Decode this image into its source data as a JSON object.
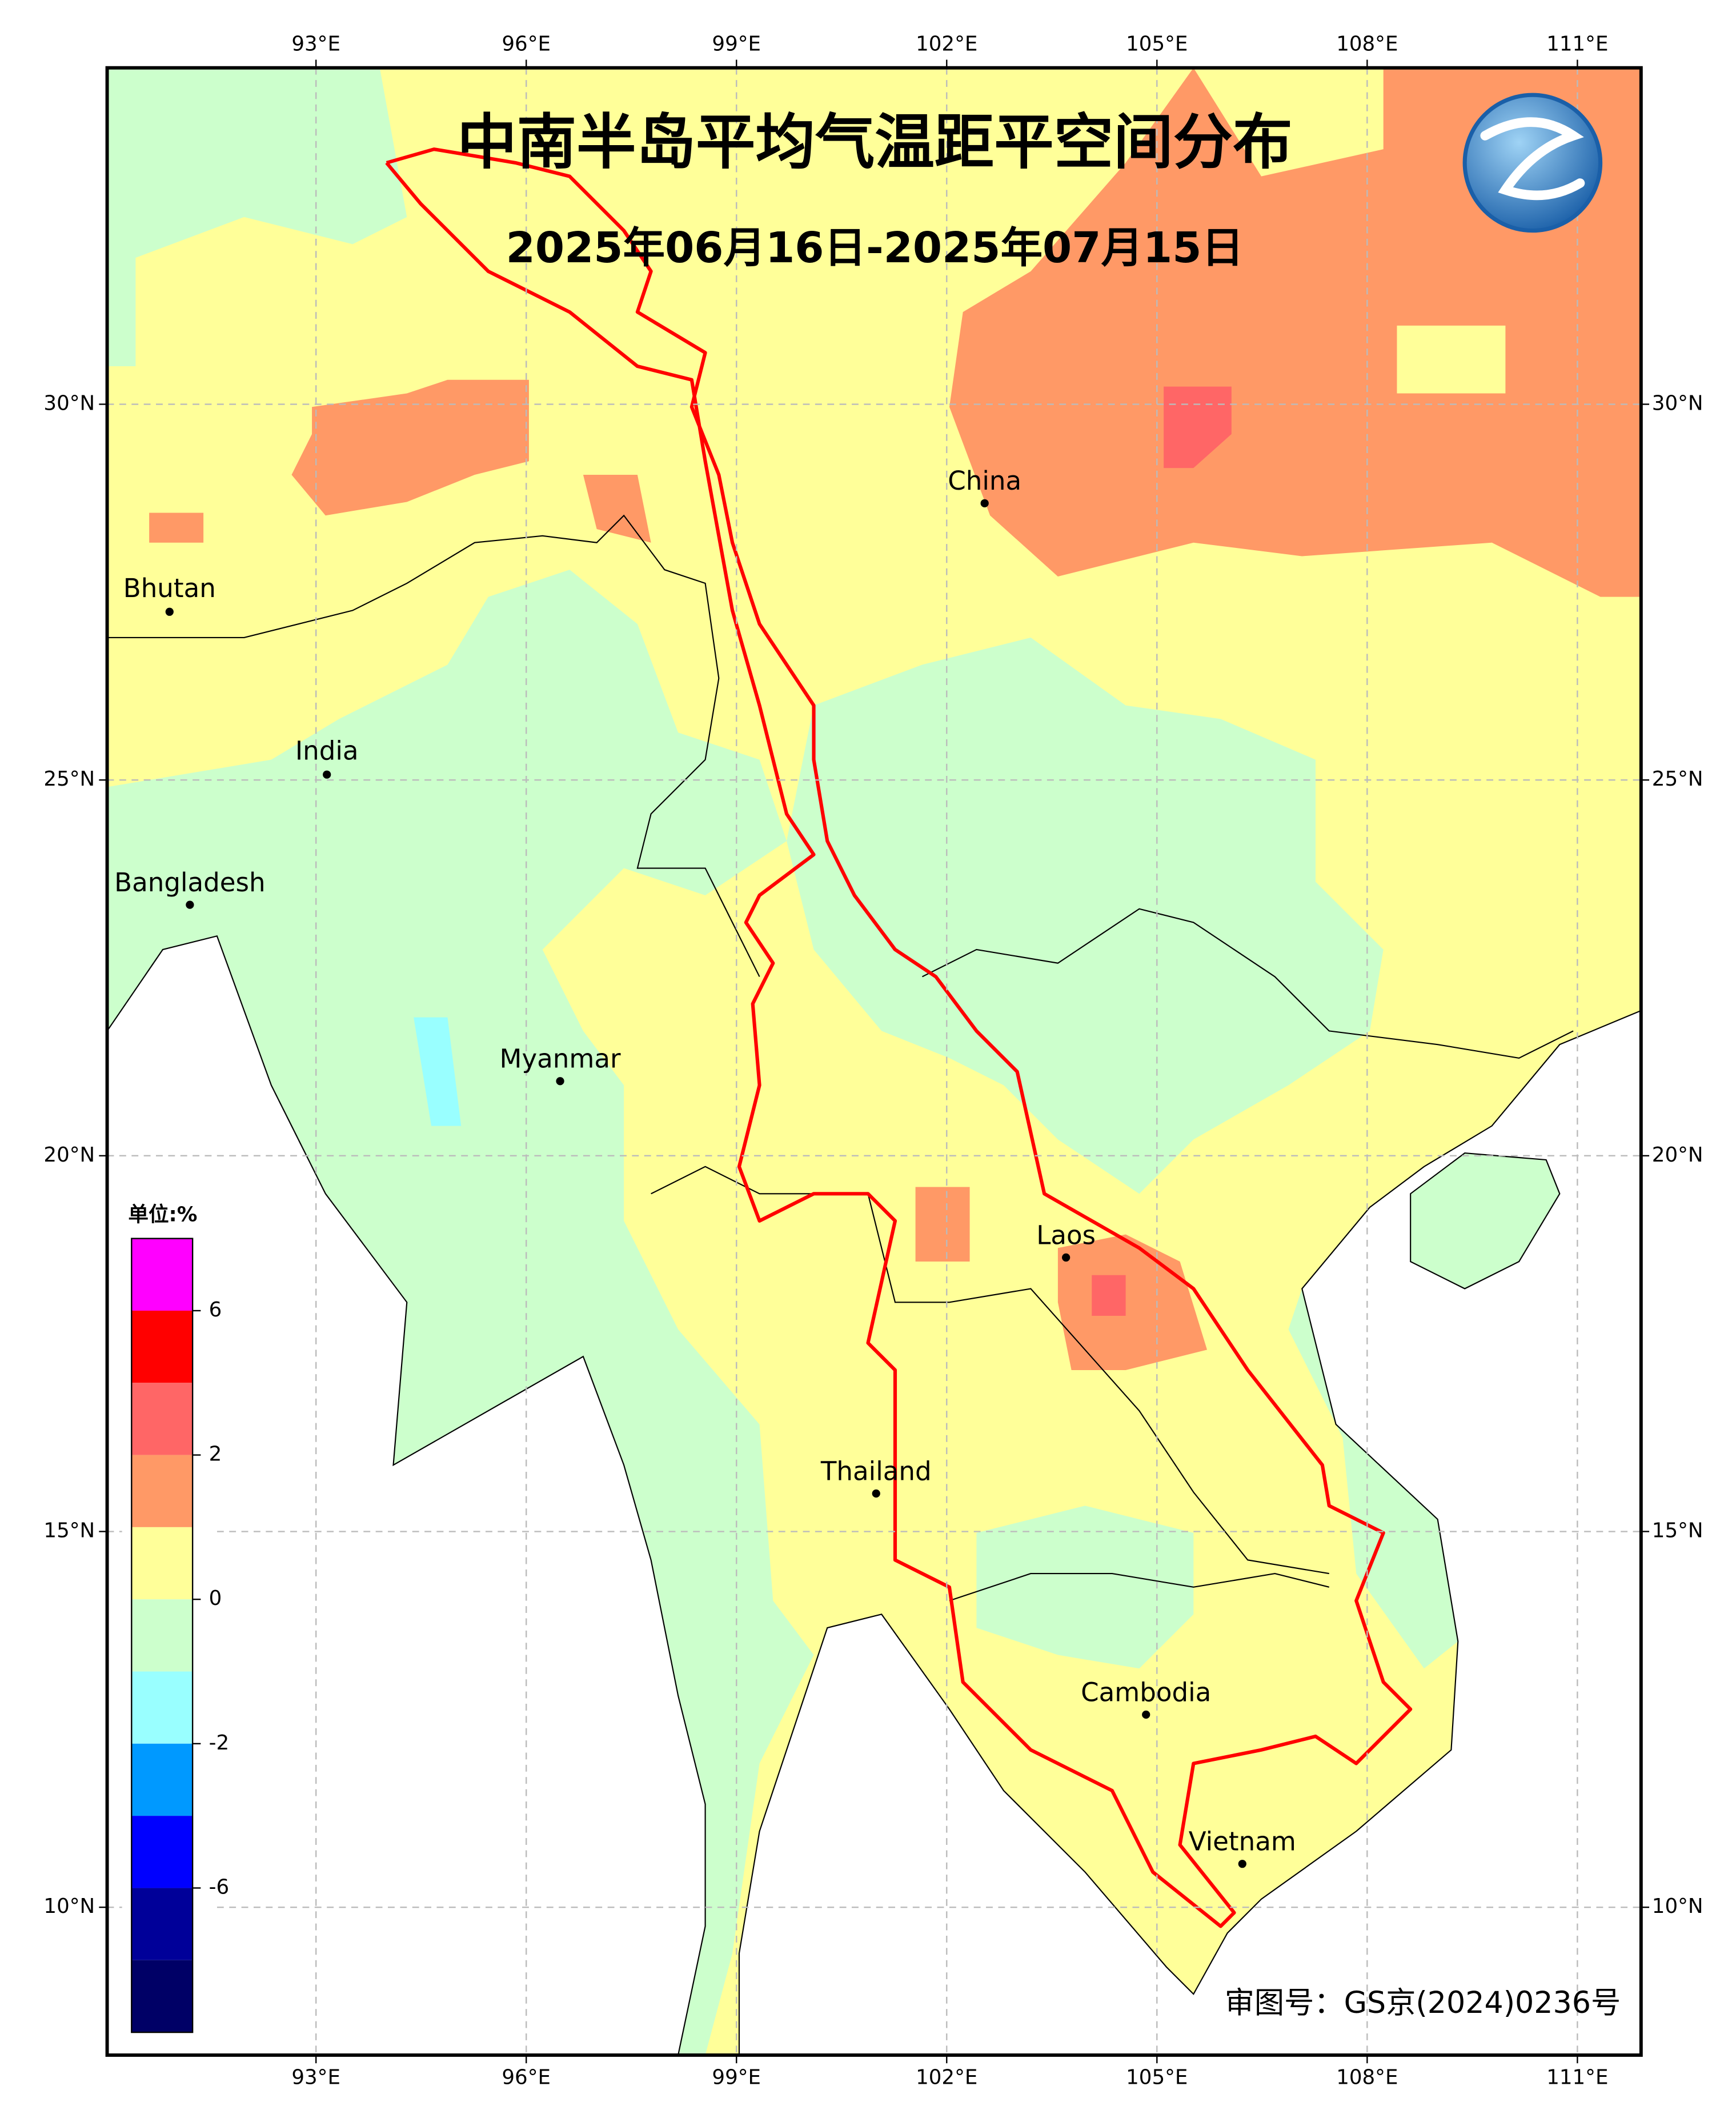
{
  "header": {
    "title": "中南半岛平均气温距平空间分布",
    "subtitle": "2025年06月16日-2025年07月15日"
  },
  "map": {
    "lon_ticks": [
      {
        "value": 93,
        "label": "93°E"
      },
      {
        "value": 96,
        "label": "96°E"
      },
      {
        "value": 99,
        "label": "99°E"
      },
      {
        "value": 102,
        "label": "102°E"
      },
      {
        "value": 105,
        "label": "105°E"
      },
      {
        "value": 108,
        "label": "108°E"
      },
      {
        "value": 111,
        "label": "111°E"
      }
    ],
    "lat_ticks": [
      {
        "value": 30,
        "label": "30°N"
      },
      {
        "value": 25,
        "label": "25°N"
      },
      {
        "value": 20,
        "label": "20°N"
      },
      {
        "value": 15,
        "label": "15°N"
      },
      {
        "value": 10,
        "label": "10°N"
      }
    ],
    "places": [
      "China",
      "Bhutan",
      "India",
      "Bangladesh",
      "Myanmar",
      "Laos",
      "Thailand",
      "Cambodia",
      "Vietnam"
    ]
  },
  "legend": {
    "unit": "单位:%",
    "colors": [
      "#ff00ff",
      "#ff0000",
      "#ff6666",
      "#ff9966",
      "#ffff99",
      "#ccffcc",
      "#99ffff",
      "#0099ff",
      "#0000ff",
      "#000099",
      "#000066"
    ],
    "labels": [
      6,
      2,
      0,
      -2,
      -6
    ]
  },
  "footer": {
    "review_no": "审图号：GS京(2024)0236号"
  }
}
